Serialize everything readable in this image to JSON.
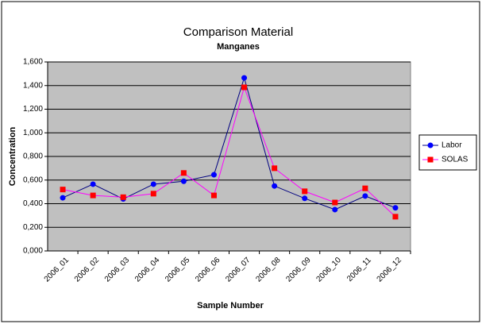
{
  "chart_data": {
    "type": "line",
    "title": "Comparison Material",
    "subtitle": "Manganes",
    "x_label": "Sample Number",
    "y_label": "Concentration",
    "categories": [
      "2006_01",
      "2006_02",
      "2006_03",
      "2006_04",
      "2006_05",
      "2006_06",
      "2006_07",
      "2006_08",
      "2006_09",
      "2006_10",
      "2006_11",
      "2006_12"
    ],
    "series": [
      {
        "name": "Labor",
        "color": "#0000ff",
        "line_color": "#000080",
        "values": [
          0.45,
          0.565,
          0.44,
          0.565,
          0.59,
          0.645,
          1.465,
          0.55,
          0.445,
          0.35,
          0.465,
          0.365
        ]
      },
      {
        "name": "SOLAS",
        "color": "#ff0000",
        "line_color": "#ff00ff",
        "values": [
          0.52,
          0.47,
          0.455,
          0.485,
          0.66,
          0.47,
          1.385,
          0.7,
          0.505,
          0.41,
          0.53,
          0.29
        ]
      }
    ],
    "ylim": [
      0,
      1.6
    ],
    "yticks": [
      {
        "value": 0,
        "label": "0,000"
      },
      {
        "value": 0.2,
        "label": "0,200"
      },
      {
        "value": 0.4,
        "label": "0,400"
      },
      {
        "value": 0.6,
        "label": "0,600"
      },
      {
        "value": 0.8,
        "label": "0,800"
      },
      {
        "value": 1.0,
        "label": "1,000"
      },
      {
        "value": 1.2,
        "label": "1,200"
      },
      {
        "value": 1.4,
        "label": "1,400"
      },
      {
        "value": 1.6,
        "label": "1,600"
      }
    ],
    "grid": true,
    "plot_background": "#c0c0c0",
    "legend": "right"
  }
}
